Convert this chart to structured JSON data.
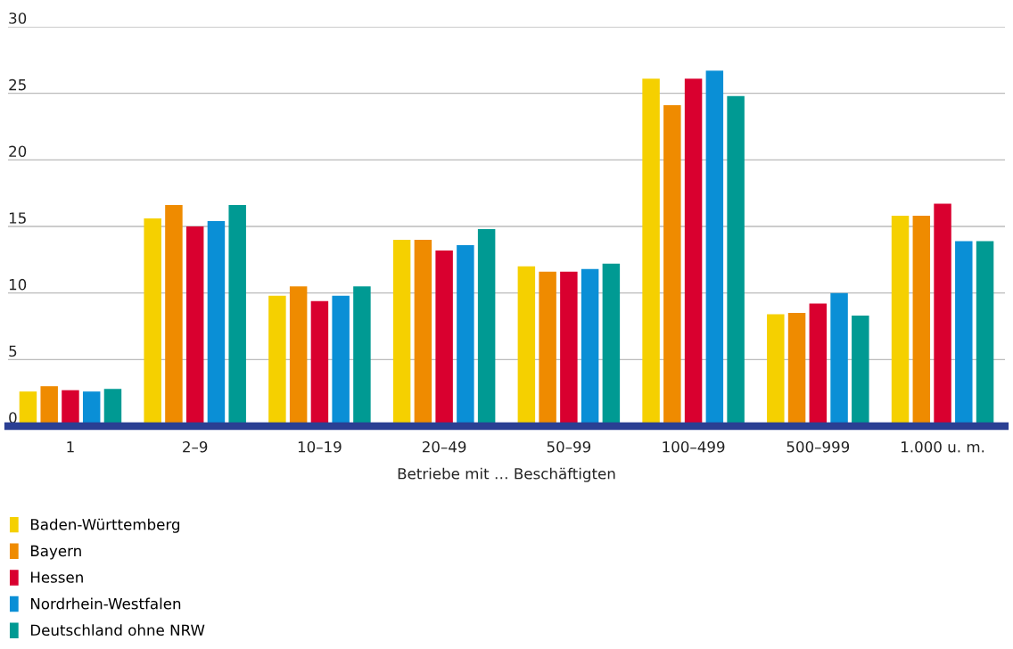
{
  "chart_data": {
    "type": "bar",
    "xlabel": "Betriebe mit … Beschäftigten",
    "categories": [
      "1",
      "2–9",
      "10–19",
      "20–49",
      "50–99",
      "100–499",
      "500–999",
      "1.000 u. m."
    ],
    "series": [
      {
        "name": "Baden-Württemberg",
        "color": "#f5d000",
        "values": [
          2.6,
          15.6,
          9.8,
          14.0,
          12.0,
          26.1,
          8.4,
          15.8
        ]
      },
      {
        "name": "Bayern",
        "color": "#ef8b00",
        "values": [
          3.0,
          16.6,
          10.5,
          14.0,
          11.6,
          24.1,
          8.5,
          15.8
        ]
      },
      {
        "name": "Hessen",
        "color": "#d9002f",
        "values": [
          2.7,
          15.0,
          9.4,
          13.2,
          11.6,
          26.1,
          9.2,
          16.7
        ]
      },
      {
        "name": "Nordrhein-Westfalen",
        "color": "#0a8fd6",
        "values": [
          2.6,
          15.4,
          9.8,
          13.6,
          11.8,
          26.7,
          10.0,
          13.9
        ]
      },
      {
        "name": "Deutschland ohne NRW",
        "color": "#009a93",
        "values": [
          2.8,
          16.6,
          10.5,
          14.8,
          12.2,
          24.8,
          8.3,
          13.9
        ]
      }
    ],
    "ylim": [
      0,
      30
    ],
    "yticks": [
      0,
      5,
      10,
      15,
      20,
      25,
      30
    ],
    "grid": "y",
    "legend": "bottom"
  }
}
